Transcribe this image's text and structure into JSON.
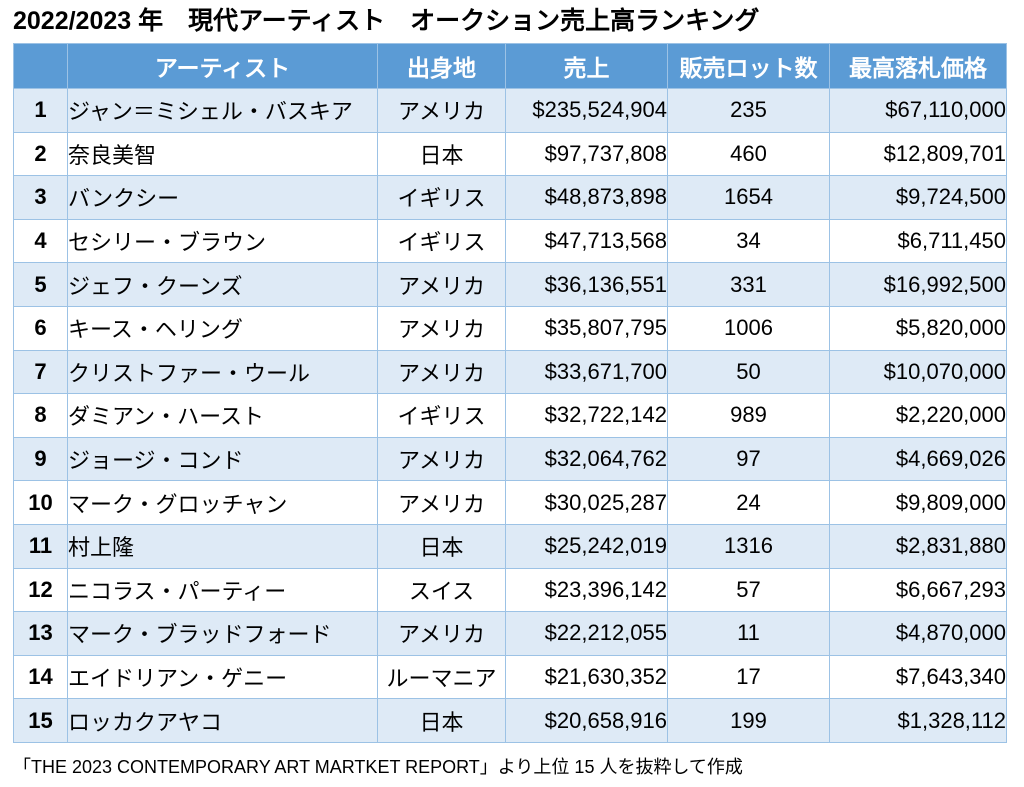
{
  "title": "2022/2023 年　現代アーティスト　オークション売上高ランキング",
  "table": {
    "headers": {
      "rank": "",
      "artist": "アーティスト",
      "origin": "出身地",
      "sales": "売上",
      "lots": "販売ロット数",
      "max_price": "最高落札価格"
    },
    "rows": [
      {
        "rank": "1",
        "artist": "ジャン＝ミシェル・バスキア",
        "origin": "アメリカ",
        "sales": "$235,524,904",
        "lots": "235",
        "max_price": "$67,110,000"
      },
      {
        "rank": "2",
        "artist": "奈良美智",
        "origin": "日本",
        "sales": "$97,737,808",
        "lots": "460",
        "max_price": "$12,809,701"
      },
      {
        "rank": "3",
        "artist": "バンクシー",
        "origin": "イギリス",
        "sales": "$48,873,898",
        "lots": "1654",
        "max_price": "$9,724,500"
      },
      {
        "rank": "4",
        "artist": "セシリー・ブラウン",
        "origin": "イギリス",
        "sales": "$47,713,568",
        "lots": "34",
        "max_price": "$6,711,450"
      },
      {
        "rank": "5",
        "artist": "ジェフ・クーンズ",
        "origin": "アメリカ",
        "sales": "$36,136,551",
        "lots": "331",
        "max_price": "$16,992,500"
      },
      {
        "rank": "6",
        "artist": "キース・ヘリング",
        "origin": "アメリカ",
        "sales": "$35,807,795",
        "lots": "1006",
        "max_price": "$5,820,000"
      },
      {
        "rank": "7",
        "artist": "クリストファー・ウール",
        "origin": "アメリカ",
        "sales": "$33,671,700",
        "lots": "50",
        "max_price": "$10,070,000"
      },
      {
        "rank": "8",
        "artist": "ダミアン・ハースト",
        "origin": "イギリス",
        "sales": "$32,722,142",
        "lots": "989",
        "max_price": "$2,220,000"
      },
      {
        "rank": "9",
        "artist": "ジョージ・コンド",
        "origin": "アメリカ",
        "sales": "$32,064,762",
        "lots": "97",
        "max_price": "$4,669,026"
      },
      {
        "rank": "10",
        "artist": "マーク・グロッチャン",
        "origin": "アメリカ",
        "sales": "$30,025,287",
        "lots": "24",
        "max_price": "$9,809,000"
      },
      {
        "rank": "11",
        "artist": "村上隆",
        "origin": "日本",
        "sales": "$25,242,019",
        "lots": "1316",
        "max_price": "$2,831,880"
      },
      {
        "rank": "12",
        "artist": "ニコラス・パーティー",
        "origin": "スイス",
        "sales": "$23,396,142",
        "lots": "57",
        "max_price": "$6,667,293"
      },
      {
        "rank": "13",
        "artist": "マーク・ブラッドフォード",
        "origin": "アメリカ",
        "sales": "$22,212,055",
        "lots": "11",
        "max_price": "$4,870,000"
      },
      {
        "rank": "14",
        "artist": "エイドリアン・ゲニー",
        "origin": "ルーマニア",
        "sales": "$21,630,352",
        "lots": "17",
        "max_price": "$7,643,340"
      },
      {
        "rank": "15",
        "artist": "ロッカクアヤコ",
        "origin": "日本",
        "sales": "$20,658,916",
        "lots": "199",
        "max_price": "$1,328,112"
      }
    ]
  },
  "footnote": "「THE 2023 CONTEMPORARY ART MARTKET REPORT」より上位 15 人を抜粋して作成",
  "colors": {
    "header_bg": "#5b9bd5",
    "header_text": "#ffffff",
    "band_row": "#deeaf6",
    "plain_row": "#ffffff",
    "border": "#9cc2e5"
  }
}
